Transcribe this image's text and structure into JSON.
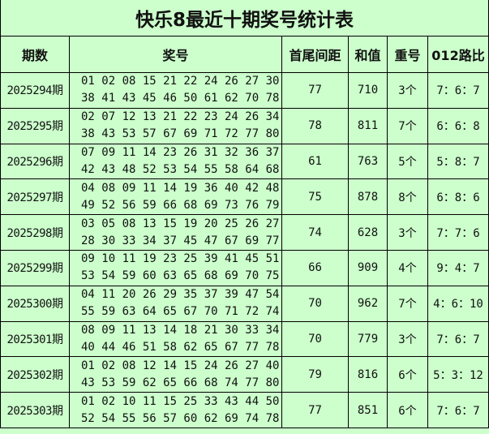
{
  "title": "快乐8最近十期奖号统计表",
  "headers": [
    "期数",
    "奖号",
    "首尾间距",
    "和值",
    "重号",
    "012路比"
  ],
  "rows": [
    {
      "period": "2025294期",
      "line1": "01 02 08 15 21 22 24 26 27 30",
      "line2": "38 41 43 45 46 50 61 62 70 78",
      "span": "77",
      "sum": "710",
      "repeat": "3个",
      "ratio": "7：6：7"
    },
    {
      "period": "2025295期",
      "line1": "02 07 12 13 21 22 23 24 26 34",
      "line2": "38 43 53 57 67 69 71 72 77 80",
      "span": "78",
      "sum": "811",
      "repeat": "7个",
      "ratio": "6：6：8"
    },
    {
      "period": "2025296期",
      "line1": "07 09 11 14 23 26 31 32 36 37",
      "line2": "42 43 48 52 53 54 55 58 64 68",
      "span": "61",
      "sum": "763",
      "repeat": "5个",
      "ratio": "5：8：7"
    },
    {
      "period": "2025297期",
      "line1": "04 08 09 11 14 19 36 40 42 48",
      "line2": "49 52 56 59 66 68 69 73 76 79",
      "span": "75",
      "sum": "878",
      "repeat": "8个",
      "ratio": "6：8：6"
    },
    {
      "period": "2025298期",
      "line1": "03 05 08 13 15 19 20 25 26 27",
      "line2": "28 30 33 34 37 45 47 67 69 77",
      "span": "74",
      "sum": "628",
      "repeat": "3个",
      "ratio": "7：7：6"
    },
    {
      "period": "2025299期",
      "line1": "09 10 11 19 23 25 39 41 45 51",
      "line2": "53 54 59 60 63 65 68 69 70 75",
      "span": "66",
      "sum": "909",
      "repeat": "4个",
      "ratio": "9：4：7"
    },
    {
      "period": "2025300期",
      "line1": "04 11 20 26 29 35 37 39 47 54",
      "line2": "55 59 63 64 65 67 70 71 72 74",
      "span": "70",
      "sum": "962",
      "repeat": "7个",
      "ratio": "4：6：10"
    },
    {
      "period": "2025301期",
      "line1": "08 09 11 13 14 18 21 30 33 34",
      "line2": "40 44 46 51 58 62 65 67 77 78",
      "span": "70",
      "sum": "779",
      "repeat": "3个",
      "ratio": "7：6：7"
    },
    {
      "period": "2025302期",
      "line1": "01 02 08 12 14 15 24 26 27 40",
      "line2": "43 53 59 62 65 66 68 74 77 80",
      "span": "79",
      "sum": "816",
      "repeat": "6个",
      "ratio": "5：3：12"
    },
    {
      "period": "2025303期",
      "line1": "01 02 10 11 15 25 33 43 44 50",
      "line2": "52 54 55 56 57 60 62 69 74 78",
      "span": "77",
      "sum": "851",
      "repeat": "6个",
      "ratio": "7：6：7"
    }
  ],
  "colors": {
    "background": "#ccffcc",
    "border": "#000000"
  }
}
